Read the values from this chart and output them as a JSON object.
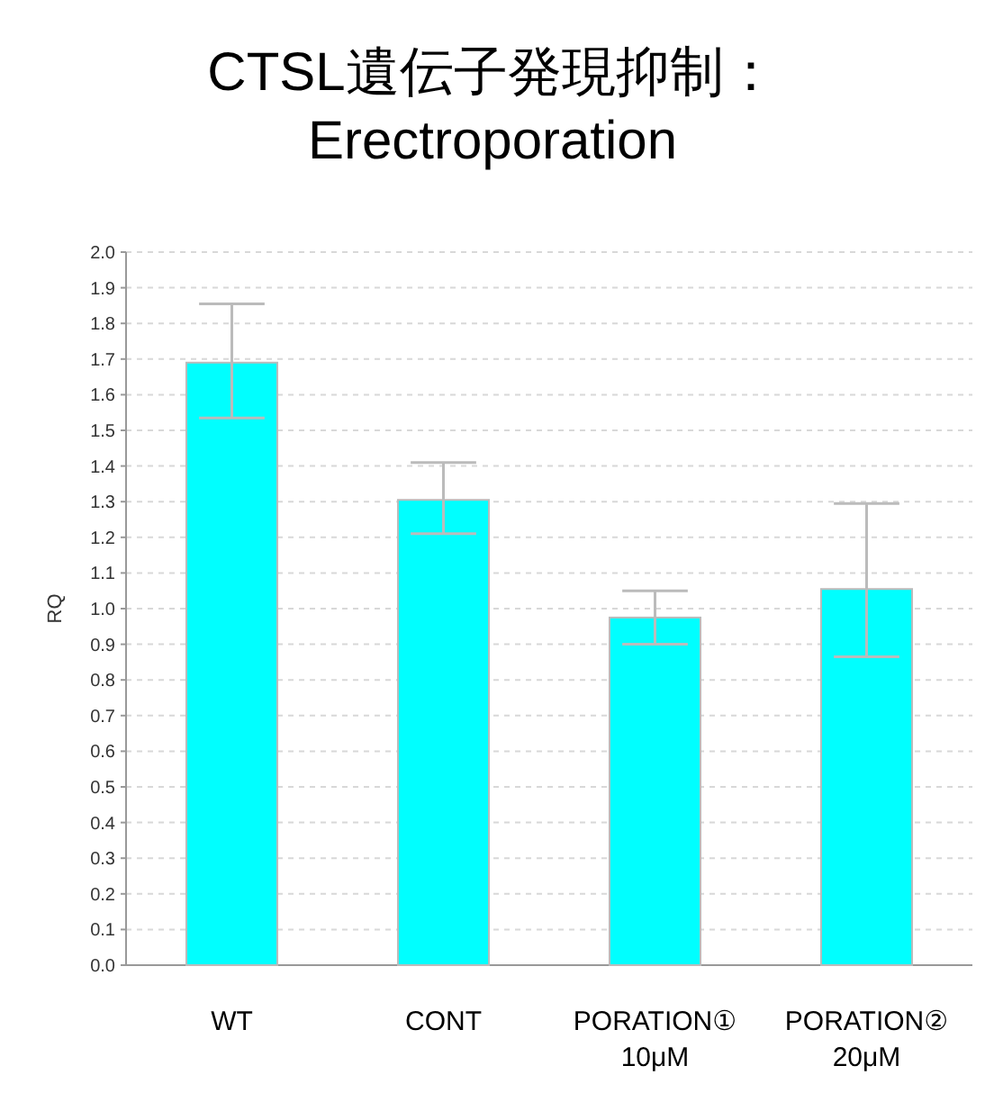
{
  "chart_data": {
    "type": "bar",
    "title": "CTSL遺伝子発現抑制：\nErectroporation",
    "ylabel": "RQ",
    "categories": [
      "WT",
      "CONT",
      "PORATION①\n10μM",
      "PORATION②\n20μM"
    ],
    "values": [
      1.69,
      1.305,
      0.975,
      1.055
    ],
    "errors": [
      [
        1.535,
        1.855
      ],
      [
        1.21,
        1.41
      ],
      [
        0.9,
        1.05
      ],
      [
        0.865,
        1.295
      ]
    ],
    "color": "#00ffff",
    "ylim": [
      0,
      2.0
    ],
    "yticks": [
      {
        "value": 0,
        "label": "0.0"
      },
      0.1,
      0.2,
      0.3,
      0.4,
      0.5,
      0.6,
      0.7,
      0.8,
      0.9,
      {
        "value": 1,
        "label": "1.0"
      },
      1.1,
      1.2,
      1.3,
      1.4,
      1.5,
      1.6,
      1.7,
      1.8,
      1.9,
      {
        "value": 2,
        "label": "2.0"
      }
    ],
    "grid": "y"
  }
}
